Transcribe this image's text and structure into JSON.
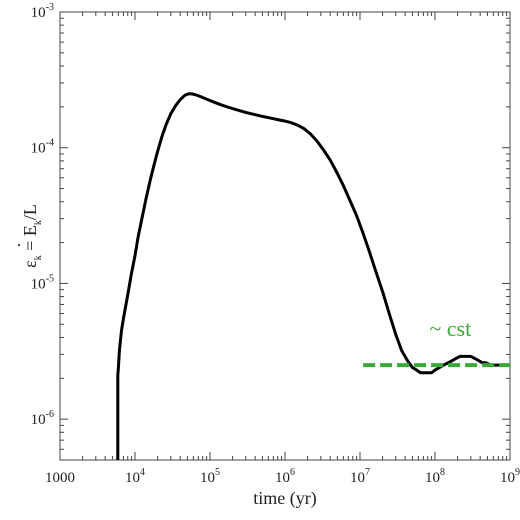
{
  "chart_data": {
    "type": "line",
    "xlabel": "time (yr)",
    "ylabel": {
      "base": "ε",
      "base_sub": "k",
      "eq": " = ",
      "num": "E",
      "num_dot": "·",
      "num_sub": "k",
      "tail": "/L"
    },
    "x_scale": "log",
    "y_scale": "log",
    "xlim": [
      1000,
      1000000000
    ],
    "ylim": [
      5e-07,
      0.001
    ],
    "grid": false,
    "x_ticks": [
      {
        "value": 1000,
        "base": "1000",
        "exp": ""
      },
      {
        "value": 10000,
        "base": "10",
        "exp": "4"
      },
      {
        "value": 100000,
        "base": "10",
        "exp": "5"
      },
      {
        "value": 1000000,
        "base": "10",
        "exp": "6"
      },
      {
        "value": 10000000,
        "base": "10",
        "exp": "7"
      },
      {
        "value": 100000000,
        "base": "10",
        "exp": "8"
      },
      {
        "value": 1000000000,
        "base": "10",
        "exp": "9"
      }
    ],
    "y_ticks": [
      {
        "value": 1e-06,
        "base": "10",
        "exp": "-6"
      },
      {
        "value": 1e-05,
        "base": "10",
        "exp": "-5"
      },
      {
        "value": 0.0001,
        "base": "10",
        "exp": "-4"
      },
      {
        "value": 0.001,
        "base": "10",
        "exp": "-3"
      }
    ],
    "series": [
      {
        "color": "#000000",
        "style": "solid",
        "x": [
          5900,
          5900,
          6000,
          6200,
          6600,
          7000,
          8000,
          9000,
          10000,
          11000,
          12500,
          14000,
          16000,
          18000,
          20000,
          23000,
          26000,
          30000,
          35000,
          40000,
          46000,
          52000,
          58000,
          65000,
          75000,
          90000,
          110000,
          140000,
          180000,
          230000,
          300000,
          400000,
          500000,
          650000,
          800000,
          1000000,
          1200000,
          1500000,
          1800000,
          2200000,
          2700000,
          3300000,
          4000000,
          5000000,
          6000000,
          7500000,
          9000000,
          11000000,
          13500000,
          16000000,
          20000000,
          25000000,
          30000000,
          36000000,
          43000000,
          50000000,
          57000000,
          64000000,
          72000000,
          80000000,
          90000000,
          100000000,
          115000000,
          130000000,
          150000000,
          170000000,
          190000000,
          215000000,
          240000000,
          270000000,
          300000000,
          340000000,
          380000000,
          430000000,
          480000000,
          550000000,
          650000000,
          800000000,
          1000000000
        ],
        "y": [
          5e-07,
          2.1e-06,
          2.4e-06,
          3.2e-06,
          4.5e-06,
          5.5e-06,
          8.2e-06,
          1.2e-05,
          1.6e-05,
          2.2e-05,
          3.1e-05,
          4.2e-05,
          5.8e-05,
          7.5e-05,
          9.4e-05,
          0.000122,
          0.000148,
          0.000178,
          0.000205,
          0.000226,
          0.000243,
          0.00025,
          0.000249,
          0.000245,
          0.000238,
          0.000228,
          0.000218,
          0.000207,
          0.000198,
          0.00019,
          0.000182,
          0.000175,
          0.00017,
          0.000165,
          0.000161,
          0.000157,
          0.000153,
          0.000146,
          0.000138,
          0.000126,
          0.000111,
          9.54e-05,
          8.1e-05,
          6.46e-05,
          5.25e-05,
          3.98e-05,
          3.16e-05,
          2.34e-05,
          1.68e-05,
          1.26e-05,
          8.7e-06,
          5.8e-06,
          4.2e-06,
          3.2e-06,
          2.7e-06,
          2.4e-06,
          2.3e-06,
          2.2e-06,
          2.2e-06,
          2.2e-06,
          2.2e-06,
          2.3e-06,
          2.4e-06,
          2.5e-06,
          2.6e-06,
          2.7e-06,
          2.8e-06,
          2.9e-06,
          2.9e-06,
          2.9e-06,
          2.9e-06,
          2.8e-06,
          2.7e-06,
          2.6e-06,
          2.6e-06,
          2.5e-06,
          2.5e-06,
          2.5e-06,
          2.5e-06
        ]
      },
      {
        "color": "#3aaa35",
        "style": "dashed",
        "x": [
          11000000,
          1000000000
        ],
        "y": [
          2.5e-06,
          2.5e-06
        ]
      }
    ],
    "annotations": [
      {
        "text": "~ cst",
        "color": "#3aaa35",
        "x": 160000000,
        "y": 4.1e-06
      }
    ]
  }
}
